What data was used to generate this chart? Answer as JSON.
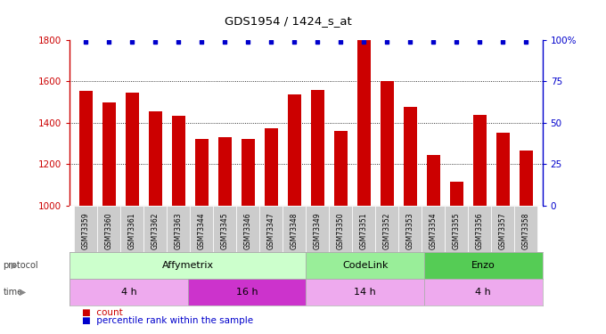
{
  "title": "GDS1954 / 1424_s_at",
  "samples": [
    "GSM73359",
    "GSM73360",
    "GSM73361",
    "GSM73362",
    "GSM73363",
    "GSM73344",
    "GSM73345",
    "GSM73346",
    "GSM73347",
    "GSM73348",
    "GSM73349",
    "GSM73350",
    "GSM73351",
    "GSM73352",
    "GSM73353",
    "GSM73354",
    "GSM73355",
    "GSM73356",
    "GSM73357",
    "GSM73358"
  ],
  "counts": [
    1555,
    1500,
    1545,
    1455,
    1435,
    1320,
    1330,
    1320,
    1375,
    1535,
    1560,
    1360,
    1800,
    1600,
    1475,
    1245,
    1115,
    1440,
    1350,
    1265
  ],
  "percentile_ranks": [
    100,
    100,
    100,
    100,
    100,
    100,
    100,
    100,
    100,
    100,
    100,
    100,
    100,
    100,
    100,
    100,
    100,
    100,
    100,
    100
  ],
  "bar_color": "#cc0000",
  "dot_color": "#0000cc",
  "ylim_left": [
    1000,
    1800
  ],
  "ylim_right": [
    0,
    100
  ],
  "yticks_left": [
    1000,
    1200,
    1400,
    1600,
    1800
  ],
  "yticks_right": [
    0,
    25,
    50,
    75,
    100
  ],
  "ytick_labels_right": [
    "0",
    "25",
    "50",
    "75",
    "100%"
  ],
  "protocol_groups": [
    {
      "label": "Affymetrix",
      "start": 0,
      "end": 10,
      "color": "#ccffcc"
    },
    {
      "label": "CodeLink",
      "start": 10,
      "end": 15,
      "color": "#99ee99"
    },
    {
      "label": "Enzo",
      "start": 15,
      "end": 20,
      "color": "#55cc55"
    }
  ],
  "time_groups": [
    {
      "label": "4 h",
      "start": 0,
      "end": 5,
      "color": "#eeaaee"
    },
    {
      "label": "16 h",
      "start": 5,
      "end": 10,
      "color": "#cc33cc"
    },
    {
      "label": "14 h",
      "start": 10,
      "end": 15,
      "color": "#eeaaee"
    },
    {
      "label": "4 h",
      "start": 15,
      "end": 20,
      "color": "#eeaaee"
    }
  ],
  "legend_count_label": "count",
  "legend_pct_label": "percentile rank within the sample",
  "background_color": "#ffffff",
  "tick_color_left": "#cc0000",
  "tick_color_right": "#0000cc",
  "sample_box_color": "#cccccc",
  "protocol_label": "protocol",
  "time_label": "time"
}
